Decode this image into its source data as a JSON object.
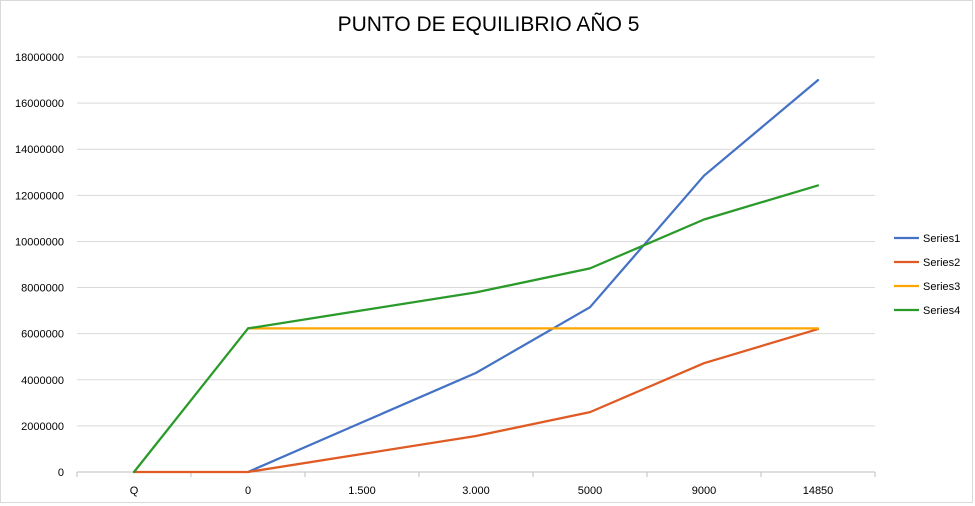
{
  "chart_data": {
    "type": "line",
    "title": "PUNTO DE EQUILIBRIO AÑO 5",
    "categories": [
      "Q",
      "0",
      "1.500",
      "3.000",
      "5000",
      "9000",
      "14850"
    ],
    "y_ticks": [
      "0",
      "2000000",
      "4000000",
      "6000000",
      "8000000",
      "10000000",
      "12000000",
      "14000000",
      "16000000",
      "18000000"
    ],
    "ylim": [
      0,
      18000000
    ],
    "grid": true,
    "legend_position": "right",
    "series": [
      {
        "name": "Series1",
        "color": "#4472c4",
        "values": [
          null,
          0,
          2150000,
          4300000,
          7150000,
          12850000,
          17000000
        ]
      },
      {
        "name": "Series2",
        "color": "#e05a24",
        "values": [
          0,
          0,
          780000,
          1560000,
          2600000,
          4720000,
          6200000
        ]
      },
      {
        "name": "Series3",
        "color": "#ffa500",
        "values": [
          null,
          6230000,
          6230000,
          6230000,
          6230000,
          6230000,
          6230000
        ]
      },
      {
        "name": "Series4",
        "color": "#2a9a2a",
        "values": [
          0,
          6230000,
          7010000,
          7790000,
          8830000,
          10950000,
          12430000
        ]
      }
    ]
  }
}
